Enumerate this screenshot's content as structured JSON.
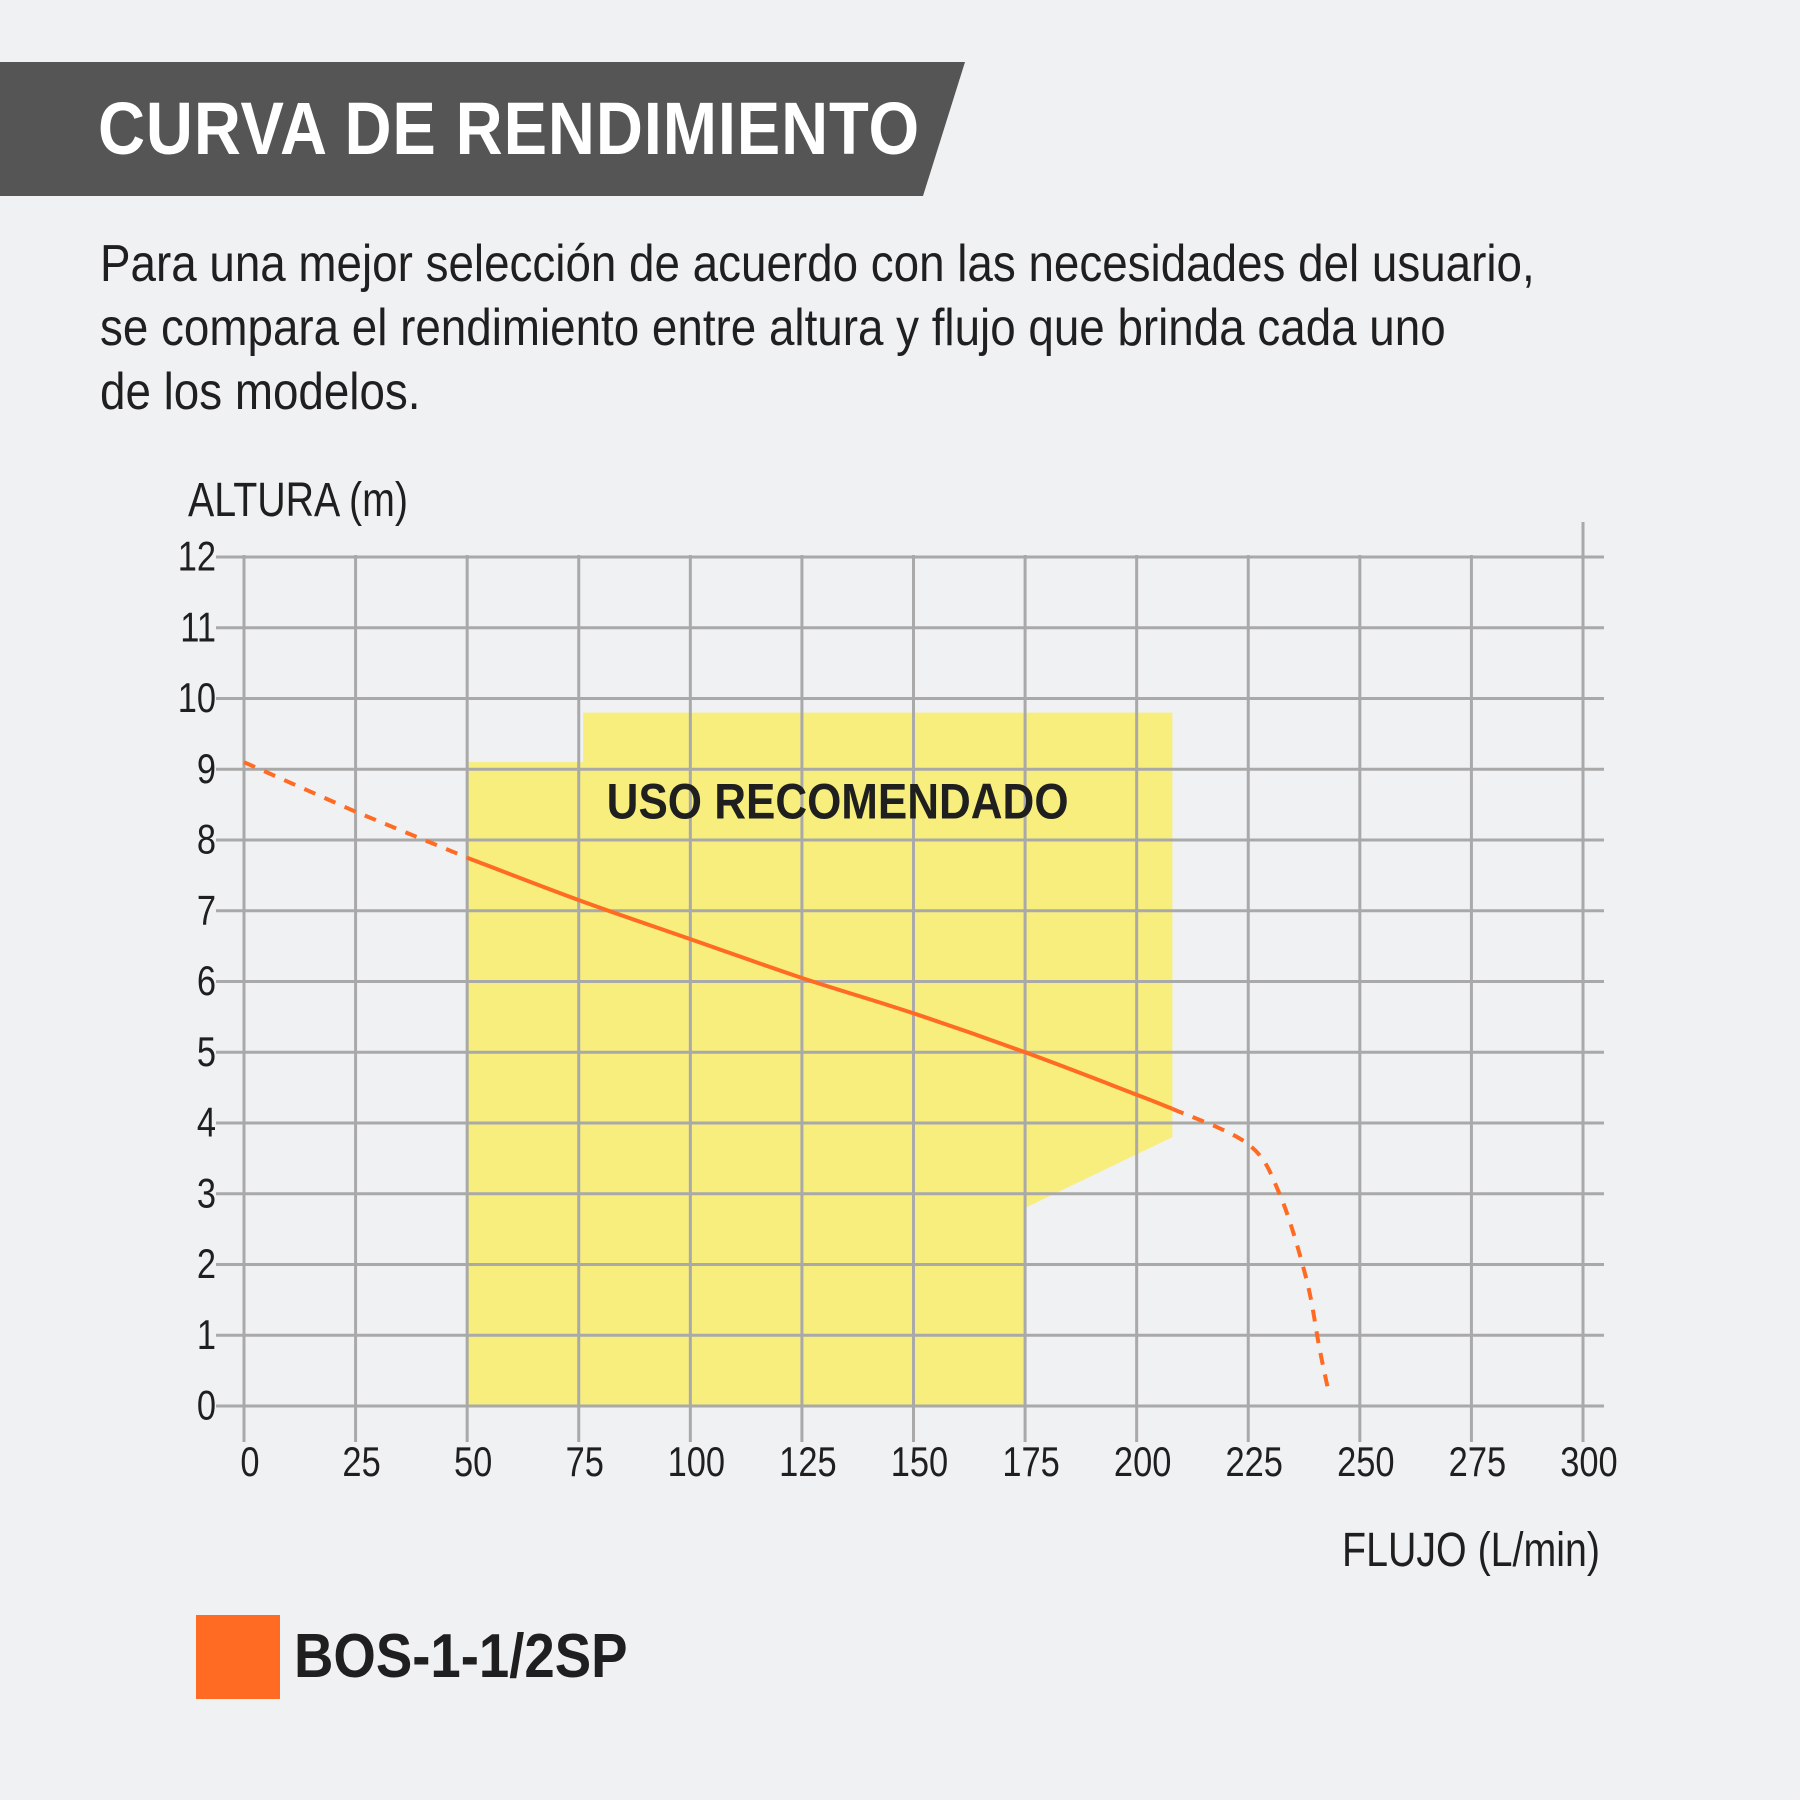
{
  "header": {
    "title": "CURVA DE RENDIMIENTO",
    "banner_color": "#555555"
  },
  "description": {
    "lines": [
      "Para una mejor selección de acuerdo con las necesidades del usuario,",
      "se compara el rendimiento entre altura y flujo que brinda cada uno",
      "de los modelos."
    ]
  },
  "chart_data": {
    "type": "line",
    "title": "",
    "ylabel": "ALTURA (m)",
    "xlabel": "FLUJO (L/min)",
    "xlim": [
      0,
      300
    ],
    "ylim": [
      0,
      12
    ],
    "x_ticks": [
      0,
      25,
      50,
      75,
      100,
      125,
      150,
      175,
      200,
      225,
      250,
      275,
      300
    ],
    "y_ticks": [
      0,
      1,
      2,
      3,
      4,
      5,
      6,
      7,
      8,
      9,
      10,
      11,
      12
    ],
    "grid": true,
    "legend_position": "bottom-left",
    "recommended_zone": {
      "label": "USO RECOMENDADO",
      "color": "#f7ee7e",
      "polygon": [
        [
          50,
          0
        ],
        [
          50,
          9.1
        ],
        [
          76,
          9.1
        ],
        [
          76,
          9.8
        ],
        [
          208,
          9.8
        ],
        [
          208,
          3.8
        ],
        [
          175,
          2.8
        ],
        [
          175,
          0
        ]
      ]
    },
    "series": [
      {
        "name": "BOS-1-1/2SP",
        "color": "#ff6b23",
        "solid": [
          [
            50,
            7.75
          ],
          [
            75,
            7.15
          ],
          [
            100,
            6.6
          ],
          [
            125,
            6.05
          ],
          [
            150,
            5.55
          ],
          [
            175,
            5.0
          ],
          [
            200,
            4.4
          ],
          [
            208,
            4.2
          ]
        ],
        "dashed_start": [
          [
            0,
            9.1
          ],
          [
            25,
            8.4
          ],
          [
            50,
            7.75
          ]
        ],
        "dashed_end": [
          [
            208,
            4.2
          ],
          [
            225,
            3.7
          ],
          [
            232,
            3.0
          ],
          [
            238,
            1.8
          ],
          [
            241,
            0.8
          ],
          [
            243,
            0.2
          ]
        ]
      }
    ]
  }
}
